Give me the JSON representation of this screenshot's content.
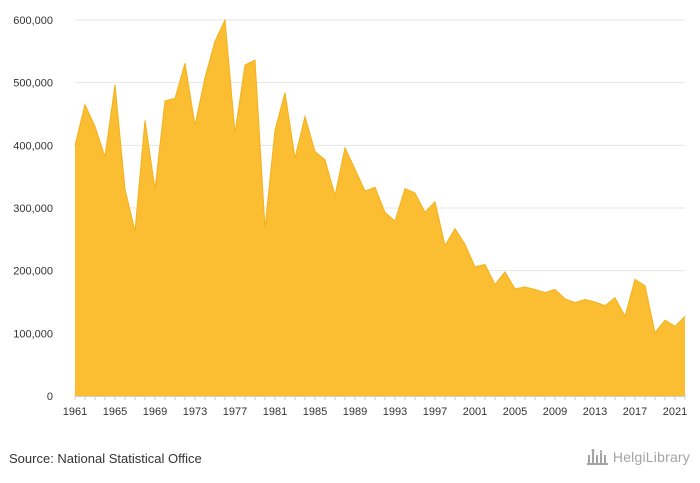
{
  "source": "Source: National Statistical Office",
  "logo_text": "HelgiLibrary",
  "colors": {
    "fill": "#FBBD32",
    "stroke": "#F2B21C",
    "grid": "#E6E6E6",
    "axis": "#CCCCCC",
    "text": "#333333",
    "logo": "#A3A3A3"
  },
  "chart_data": {
    "type": "area",
    "title": "",
    "xlabel": "",
    "ylabel": "",
    "ylim": [
      0,
      600000
    ],
    "yticks": [
      0,
      100000,
      200000,
      300000,
      400000,
      500000,
      600000
    ],
    "ytick_labels": [
      "0",
      "100,000",
      "200,000",
      "300,000",
      "400,000",
      "500,000",
      "600,000"
    ],
    "xticks": [
      1961,
      1965,
      1969,
      1973,
      1977,
      1981,
      1985,
      1989,
      1993,
      1997,
      2001,
      2005,
      2009,
      2013,
      2017,
      2021
    ],
    "grid": true,
    "legend": "none",
    "x": [
      1961,
      1962,
      1963,
      1964,
      1965,
      1966,
      1967,
      1968,
      1969,
      1970,
      1971,
      1972,
      1973,
      1974,
      1975,
      1976,
      1977,
      1978,
      1979,
      1980,
      1981,
      1982,
      1983,
      1984,
      1985,
      1986,
      1987,
      1988,
      1989,
      1990,
      1991,
      1992,
      1993,
      1994,
      1995,
      1996,
      1997,
      1998,
      1999,
      2000,
      2001,
      2002,
      2003,
      2004,
      2005,
      2006,
      2007,
      2008,
      2009,
      2010,
      2011,
      2012,
      2013,
      2014,
      2015,
      2016,
      2017,
      2018,
      2019,
      2020,
      2021,
      2022
    ],
    "values": [
      400000,
      465000,
      430000,
      382000,
      497000,
      330000,
      263000,
      440000,
      330000,
      471000,
      475000,
      531000,
      432000,
      508000,
      566000,
      600000,
      420000,
      528000,
      536000,
      268000,
      424000,
      484000,
      380000,
      446000,
      390000,
      377000,
      320000,
      396000,
      362000,
      327000,
      333000,
      293000,
      279000,
      331000,
      324000,
      293000,
      310000,
      240000,
      267000,
      242000,
      206000,
      210000,
      178000,
      198000,
      171000,
      174000,
      170000,
      165000,
      170000,
      155000,
      149000,
      154000,
      150000,
      144000,
      157000,
      127000,
      186000,
      176000,
      101000,
      121000,
      111000,
      127000
    ]
  }
}
